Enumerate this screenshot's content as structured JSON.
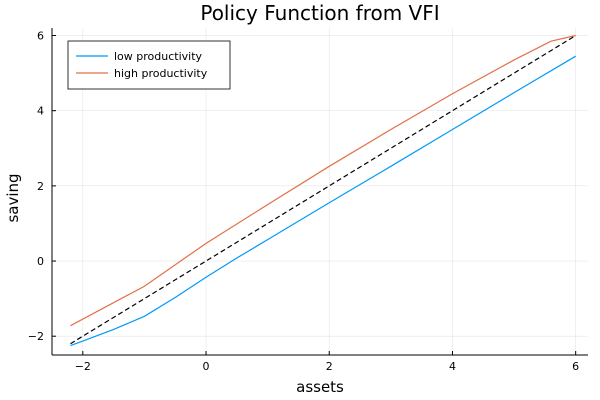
{
  "chart_data": {
    "type": "line",
    "title": "Policy Function from VFI",
    "xlabel": "assets",
    "ylabel": "saving",
    "xlim": [
      -2.5,
      6.2
    ],
    "ylim": [
      -2.5,
      6.2
    ],
    "xticks": [
      -2,
      0,
      2,
      4,
      6
    ],
    "yticks": [
      -2,
      0,
      2,
      4,
      6
    ],
    "grid": true,
    "legend_position": "top-left",
    "series": [
      {
        "name": "low productivity",
        "color": "#009AFA",
        "style": "solid",
        "x": [
          -2.2,
          -2.0,
          -1.5,
          -1.0,
          -0.5,
          0.0,
          0.5,
          1.0,
          2.0,
          3.0,
          4.0,
          5.0,
          6.0
        ],
        "y": [
          -2.25,
          -2.13,
          -1.82,
          -1.47,
          -0.97,
          -0.43,
          0.08,
          0.57,
          1.55,
          2.52,
          3.5,
          4.48,
          5.45
        ]
      },
      {
        "name": "high productivity",
        "color": "#E36F47",
        "style": "solid",
        "x": [
          -2.2,
          -1.0,
          0.0,
          1.0,
          2.0,
          3.0,
          4.0,
          5.0,
          5.6,
          6.0
        ],
        "y": [
          -1.72,
          -0.67,
          0.47,
          1.5,
          2.52,
          3.5,
          4.45,
          5.35,
          5.85,
          6.0
        ]
      },
      {
        "color": "#000000",
        "style": "dashed",
        "x": [
          -2.2,
          6.0
        ],
        "y": [
          -2.2,
          6.0
        ]
      }
    ]
  }
}
